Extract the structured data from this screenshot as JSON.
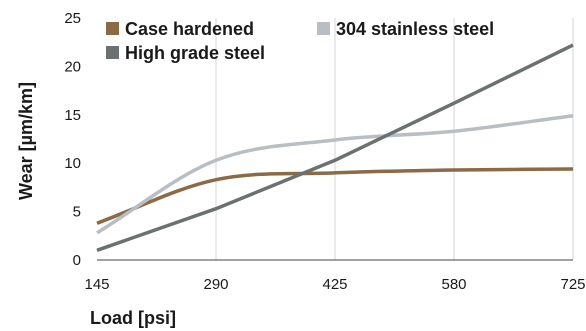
{
  "chart_data": {
    "type": "line",
    "x": [
      145,
      290,
      425,
      580,
      725
    ],
    "xlabel": "Load [psi]",
    "ylabel": "Wear [µm/km]",
    "xlim": [
      145,
      725
    ],
    "ylim": [
      0,
      25
    ],
    "x_ticks": [
      "145",
      "290",
      "425",
      "580",
      "725"
    ],
    "y_ticks": [
      "0",
      "5",
      "10",
      "15",
      "20",
      "25"
    ],
    "grid": "vertical",
    "legend_position": "top-left",
    "series": [
      {
        "name": "Case hardened",
        "color": "#8b6a45",
        "values": [
          3.8,
          8.3,
          9.0,
          9.3,
          9.4
        ]
      },
      {
        "name": "304 stainless steel",
        "color": "#b8bec4",
        "values": [
          2.8,
          10.3,
          12.4,
          13.3,
          14.9
        ]
      },
      {
        "name": "High grade steel",
        "color": "#6b7170",
        "values": [
          1.0,
          5.3,
          10.3,
          16.2,
          22.2
        ]
      }
    ]
  }
}
